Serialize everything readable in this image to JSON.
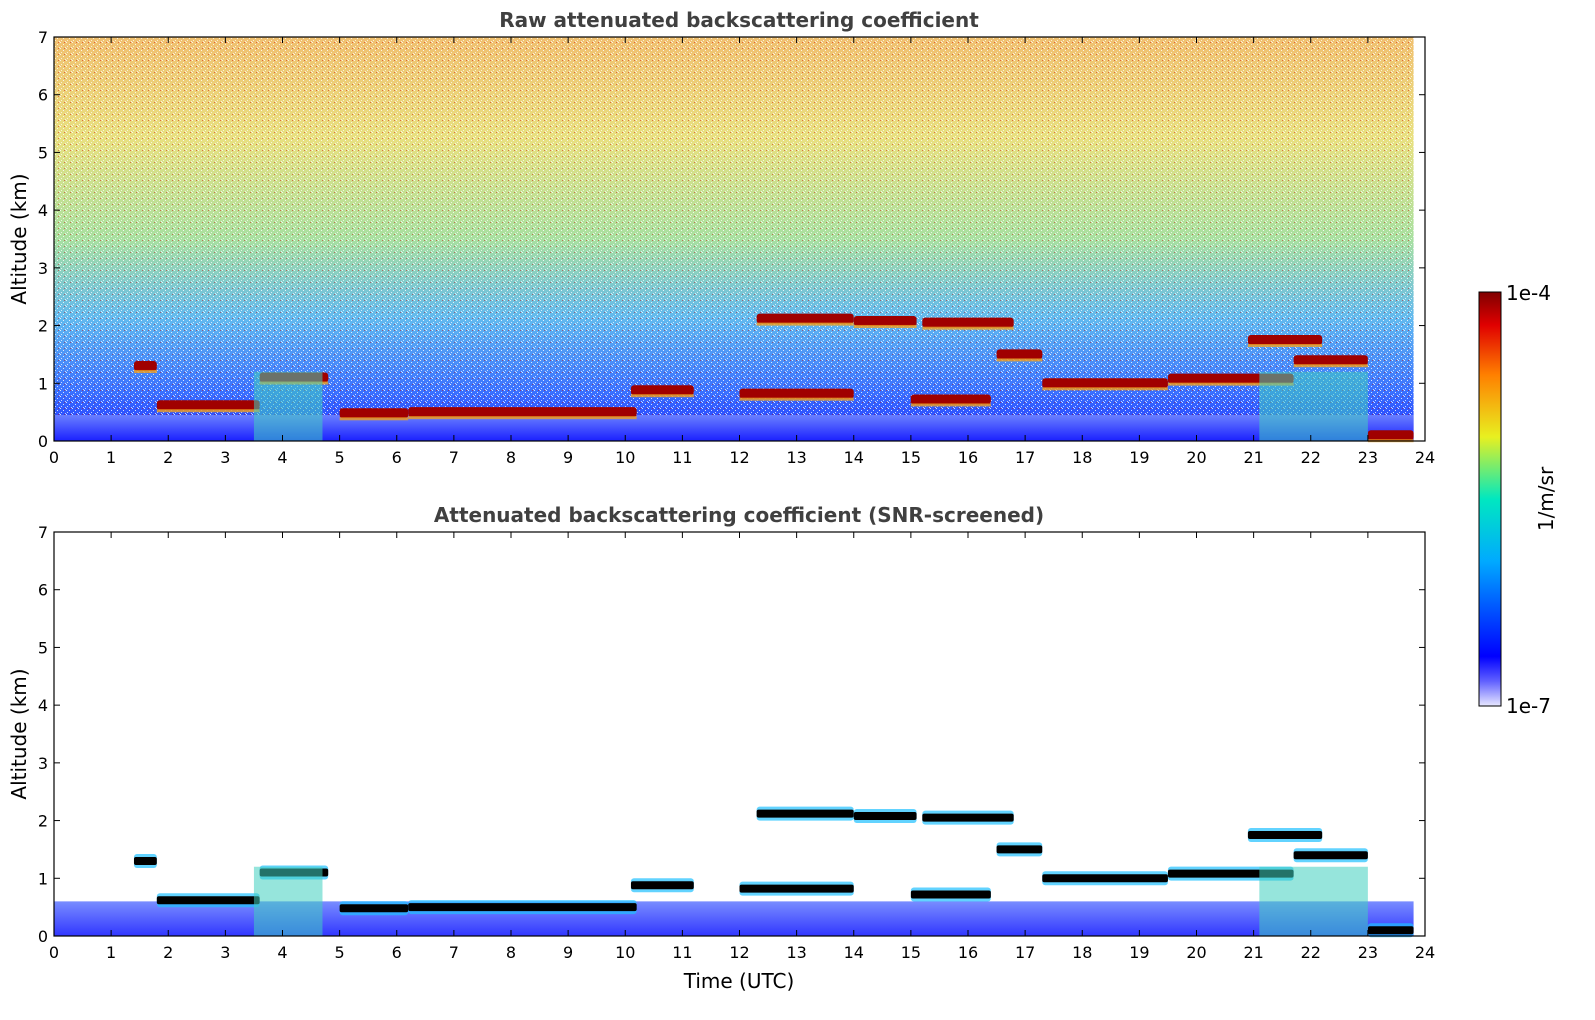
{
  "chart_data": [
    {
      "type": "heatmap",
      "title": "Raw attenuated backscattering coefficient",
      "xlabel": "",
      "ylabel": "Altitude (km)",
      "xlim": [
        0,
        24
      ],
      "ylim": [
        0,
        7
      ],
      "x_ticks": [
        "0",
        "1",
        "2",
        "3",
        "4",
        "5",
        "6",
        "7",
        "8",
        "9",
        "10",
        "11",
        "12",
        "13",
        "14",
        "15",
        "16",
        "17",
        "18",
        "19",
        "20",
        "21",
        "22",
        "23",
        "24"
      ],
      "y_ticks": [
        "0",
        "1",
        "2",
        "3",
        "4",
        "5",
        "6",
        "7"
      ],
      "cloud_layers": [
        {
          "t0": 1.4,
          "t1": 1.8,
          "alt": 1.3
        },
        {
          "t0": 1.8,
          "t1": 3.6,
          "alt": 0.62
        },
        {
          "t0": 3.6,
          "t1": 4.8,
          "alt": 1.1
        },
        {
          "t0": 5.0,
          "t1": 6.2,
          "alt": 0.48
        },
        {
          "t0": 6.2,
          "t1": 10.2,
          "alt": 0.5
        },
        {
          "t0": 10.1,
          "t1": 11.2,
          "alt": 0.88
        },
        {
          "t0": 12.3,
          "t1": 14.0,
          "alt": 2.12
        },
        {
          "t0": 14.0,
          "t1": 15.1,
          "alt": 2.08
        },
        {
          "t0": 15.2,
          "t1": 16.8,
          "alt": 2.05
        },
        {
          "t0": 12.0,
          "t1": 14.0,
          "alt": 0.82
        },
        {
          "t0": 15.0,
          "t1": 16.4,
          "alt": 0.72
        },
        {
          "t0": 16.5,
          "t1": 17.3,
          "alt": 1.5
        },
        {
          "t0": 17.3,
          "t1": 19.5,
          "alt": 1.0
        },
        {
          "t0": 19.5,
          "t1": 21.7,
          "alt": 1.08
        },
        {
          "t0": 21.7,
          "t1": 23.0,
          "alt": 1.4
        },
        {
          "t0": 20.9,
          "t1": 22.2,
          "alt": 1.75
        },
        {
          "t0": 23.0,
          "t1": 23.8,
          "alt": 0.1
        }
      ]
    },
    {
      "type": "heatmap",
      "title": "Attenuated backscattering coefficient (SNR-screened)",
      "xlabel": "Time (UTC)",
      "ylabel": "Altitude (km)",
      "xlim": [
        0,
        24
      ],
      "ylim": [
        0,
        7
      ],
      "x_ticks": [
        "0",
        "1",
        "2",
        "3",
        "4",
        "5",
        "6",
        "7",
        "8",
        "9",
        "10",
        "11",
        "12",
        "13",
        "14",
        "15",
        "16",
        "17",
        "18",
        "19",
        "20",
        "21",
        "22",
        "23",
        "24"
      ],
      "y_ticks": [
        "0",
        "1",
        "2",
        "3",
        "4",
        "5",
        "6",
        "7"
      ]
    }
  ],
  "colorbar": {
    "label": "1/m/sr",
    "max_label": "1e-4",
    "min_label": "1e-7",
    "colors": [
      "#e8e8ff",
      "#0000ff",
      "#00aaff",
      "#00e8c0",
      "#e8f020",
      "#ff8000",
      "#e00000",
      "#800000"
    ]
  }
}
